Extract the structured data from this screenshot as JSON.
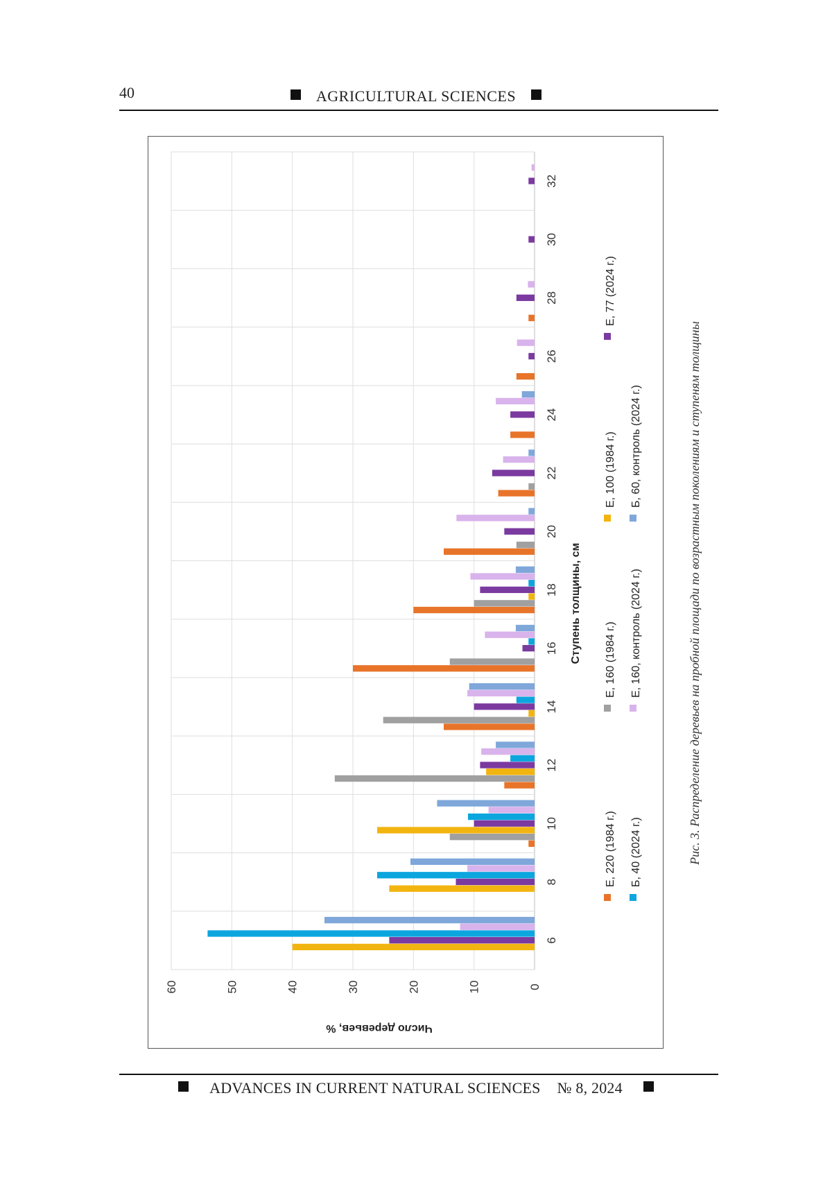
{
  "header": {
    "page_number": "40",
    "journal_section": "AGRICULTURAL SCIENCES"
  },
  "footer": {
    "journal_name": "ADVANCES IN CURRENT NATURAL SCIENCES",
    "issue": "№ 8, 2024"
  },
  "caption": "Рис. 3. Распределение деревьев на пробной площади по возрастным поколениям и ступеням толщины",
  "chart_data": {
    "type": "bar",
    "orientation": "horizontal",
    "rotation": "figure rotated 90° clockwise on page",
    "xlabel": "Ступень толщины, см",
    "ylabel": "Число деревьев, %",
    "ylim": [
      0,
      60
    ],
    "yticks": [
      0,
      10,
      20,
      30,
      40,
      50,
      60
    ],
    "categories": [
      "6",
      "8",
      "10",
      "12",
      "14",
      "16",
      "18",
      "20",
      "22",
      "24",
      "26",
      "28",
      "30",
      "32"
    ],
    "grid": true,
    "legend_position": "bottom",
    "series": [
      {
        "name": "Е, 220 (1984 г.)",
        "color": "#E8742A",
        "values": [
          0,
          0,
          1,
          5,
          15,
          30,
          20,
          15,
          6,
          4,
          3,
          1,
          0,
          0
        ]
      },
      {
        "name": "Е, 160 (1984 г.)",
        "color": "#A0A0A0",
        "values": [
          0,
          0,
          14,
          33,
          25,
          14,
          10,
          3,
          1,
          0,
          0,
          0,
          0,
          0
        ]
      },
      {
        "name": "Е, 100 (1984 г.)",
        "color": "#F2B40F",
        "values": [
          40,
          24,
          26,
          8,
          1,
          0,
          1,
          0,
          0,
          0,
          0,
          0,
          0,
          0
        ]
      },
      {
        "name": "Е, 77 (2024 г.)",
        "color": "#7B3AA0",
        "values": [
          24,
          13,
          10,
          9,
          10,
          2,
          9,
          5,
          7,
          4,
          1,
          3,
          1,
          1
        ]
      },
      {
        "name": "Б, 40 (2024 г.)",
        "color": "#0CA6DE",
        "values": [
          54,
          26,
          11,
          4,
          3,
          1,
          1,
          0,
          0,
          0,
          0,
          0,
          0,
          0
        ]
      },
      {
        "name": "Е, 160, контроль (2024 г.)",
        "color": "#D9B3EC",
        "values": [
          12.3,
          11.1,
          7.6,
          8.8,
          11.1,
          8.2,
          10.6,
          12.9,
          5.2,
          6.4,
          2.9,
          1.1,
          0,
          0.5
        ]
      },
      {
        "name": "Б, 60, контроль (2024 г.)",
        "color": "#7FA7DA",
        "values": [
          34.7,
          20.5,
          16.1,
          6.4,
          10.8,
          3.1,
          3.1,
          1,
          1,
          2.1,
          0,
          0,
          0,
          0
        ]
      }
    ]
  }
}
